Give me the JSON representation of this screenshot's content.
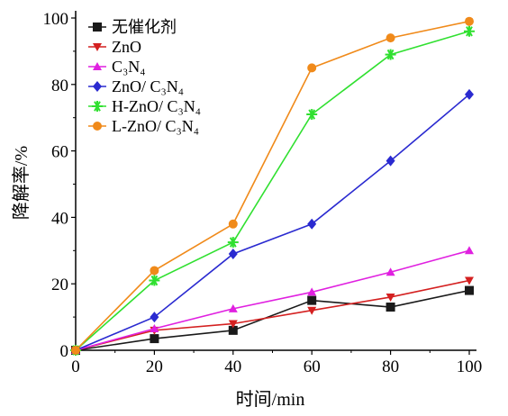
{
  "chart_data": {
    "type": "line",
    "xlabel": "时间/min",
    "ylabel": "降解率/%",
    "xlim": [
      0,
      100
    ],
    "ylim": [
      0,
      100
    ],
    "x_ticks": [
      "0",
      "20",
      "40",
      "60",
      "80",
      "100"
    ],
    "y_ticks": [
      "0",
      "20",
      "40",
      "60",
      "80",
      "100"
    ],
    "grid": false,
    "legend_position": "top-left",
    "x": [
      0,
      20,
      40,
      60,
      80,
      100
    ],
    "series": [
      {
        "name": "无催化剂",
        "color": "#1a1a1a",
        "marker": "square",
        "values": [
          0,
          3.5,
          6,
          15,
          13,
          18
        ]
      },
      {
        "name": "ZnO",
        "color": "#d42020",
        "marker": "triangle-down",
        "values": [
          0,
          6,
          8,
          12,
          16,
          21
        ]
      },
      {
        "name": "C₃N₄",
        "color": "#e020e0",
        "marker": "triangle-up",
        "values": [
          0,
          6.5,
          12.5,
          17.5,
          23.5,
          30
        ]
      },
      {
        "name": "ZnO/ C₃N₄",
        "color": "#2a2ad0",
        "marker": "diamond",
        "values": [
          0,
          10,
          29,
          38,
          57,
          77
        ]
      },
      {
        "name": "H-ZnO/ C₃N₄",
        "color": "#30e030",
        "marker": "asterisk",
        "values": [
          0,
          21,
          32.5,
          71,
          89,
          96
        ]
      },
      {
        "name": "L-ZnO/ C₃N₄",
        "color": "#f08a1a",
        "marker": "circle",
        "values": [
          0,
          24,
          38,
          85,
          94,
          99
        ]
      }
    ]
  }
}
